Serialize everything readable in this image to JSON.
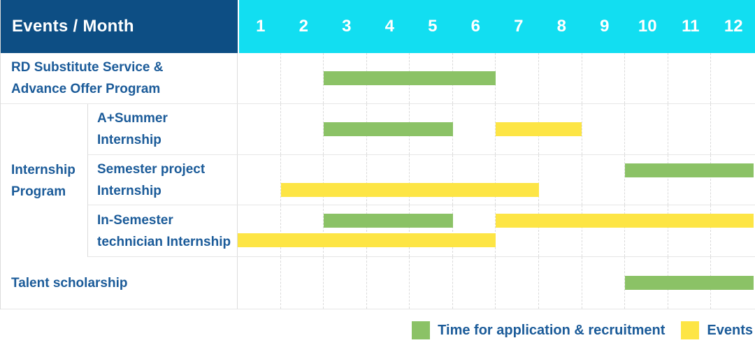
{
  "header": {
    "corner_label": "Events / Month",
    "months": [
      "1",
      "2",
      "3",
      "4",
      "5",
      "6",
      "7",
      "8",
      "9",
      "10",
      "11",
      "12"
    ]
  },
  "colors": {
    "header_bg": "#0d4e84",
    "months_bg": "#12def1",
    "application": "#8bc266",
    "events": "#fde545",
    "label_text": "#1b5b99",
    "grid_line": "#dadada"
  },
  "legend": {
    "application_label": "Time for application & recruitment",
    "events_label": "Events"
  },
  "chart_data": {
    "type": "gantt",
    "x_label": "Month",
    "x_ticks": [
      "1",
      "2",
      "3",
      "4",
      "5",
      "6",
      "7",
      "8",
      "9",
      "10",
      "11",
      "12"
    ],
    "x_range": [
      1,
      12
    ],
    "grid": true,
    "legend_position": "bottom-right",
    "series": [
      {
        "name": "Time for application & recruitment",
        "key": "application",
        "color": "#8bc266"
      },
      {
        "name": "Events",
        "key": "events",
        "color": "#fde545"
      }
    ],
    "rows": [
      {
        "group": "",
        "label": "RD Substitute Service &\nAdvance Offer Program",
        "bars": [
          {
            "series": "application",
            "start": 3,
            "end": 6,
            "lane": "single"
          }
        ]
      },
      {
        "group": "Internship Program",
        "label": "A+Summer\nInternship",
        "bars": [
          {
            "series": "application",
            "start": 3,
            "end": 5,
            "lane": "single"
          },
          {
            "series": "events",
            "start": 7,
            "end": 8,
            "lane": "single"
          }
        ]
      },
      {
        "group": "Internship Program",
        "label": "Semester project\nInternship",
        "bars": [
          {
            "series": "application",
            "start": 10,
            "end": 12,
            "lane": "upper"
          },
          {
            "series": "events",
            "start": 2,
            "end": 7,
            "lane": "lower"
          }
        ]
      },
      {
        "group": "Internship Program",
        "label": "In-Semester\ntechnician Internship",
        "bars": [
          {
            "series": "application",
            "start": 3,
            "end": 5,
            "lane": "upper"
          },
          {
            "series": "events",
            "start": 7,
            "end": 12,
            "lane": "upper"
          },
          {
            "series": "events",
            "start": 1,
            "end": 6,
            "lane": "lower"
          }
        ]
      },
      {
        "group": "",
        "label": "Talent scholarship",
        "bars": [
          {
            "series": "application",
            "start": 10,
            "end": 12,
            "lane": "single"
          }
        ]
      }
    ]
  }
}
